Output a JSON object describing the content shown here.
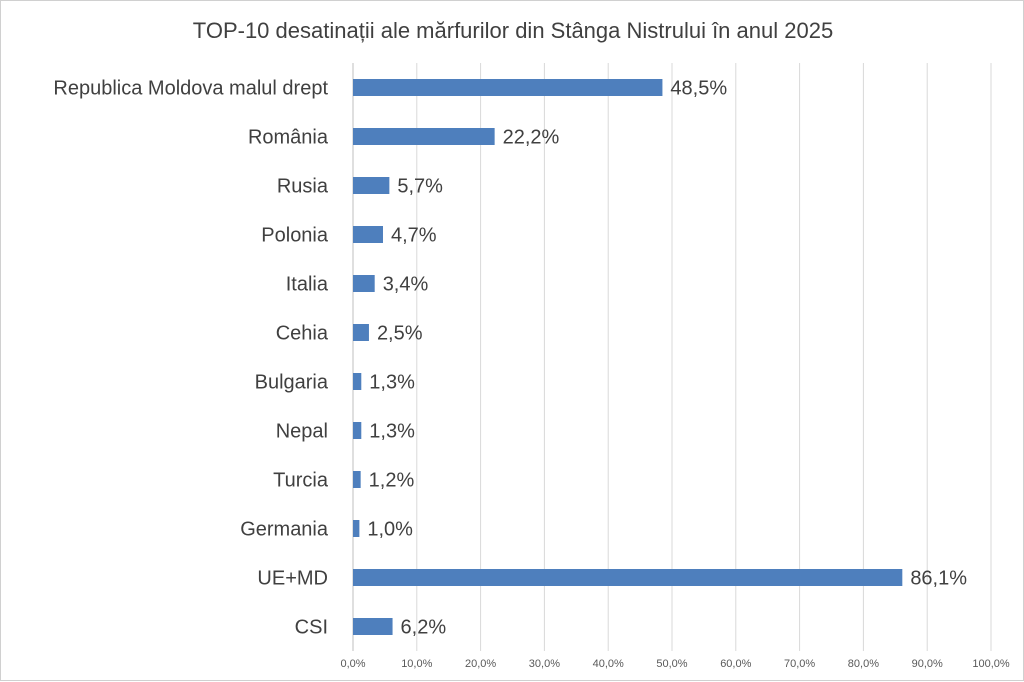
{
  "chart_data": {
    "type": "bar",
    "orientation": "horizontal",
    "title": "TOP-10 desatinații ale mărfurilor din Stânga Nistrului în anul 2025",
    "categories": [
      "Republica Moldova malul drept",
      "România",
      "Rusia",
      "Polonia",
      "Italia",
      "Cehia",
      "Bulgaria",
      "Nepal",
      "Turcia",
      "Germania",
      "UE+MD",
      "CSI"
    ],
    "values": [
      48.5,
      22.2,
      5.7,
      4.7,
      3.4,
      2.5,
      1.3,
      1.3,
      1.2,
      1.0,
      86.1,
      6.2
    ],
    "value_labels": [
      "48,5%",
      "22,2%",
      "5,7%",
      "4,7%",
      "3,4%",
      "2,5%",
      "1,3%",
      "1,3%",
      "1,2%",
      "1,0%",
      "86,1%",
      "6,2%"
    ],
    "xlim": [
      0,
      100
    ],
    "x_ticks": [
      0,
      10,
      20,
      30,
      40,
      50,
      60,
      70,
      80,
      90,
      100
    ],
    "x_tick_labels": [
      "0,0%",
      "10,0%",
      "20,0%",
      "30,0%",
      "40,0%",
      "50,0%",
      "60,0%",
      "70,0%",
      "80,0%",
      "90,0%",
      "100,0%"
    ],
    "xlabel": "",
    "ylabel": "",
    "grid": true,
    "legend": "none",
    "bar_color": "#4e7fbd"
  }
}
